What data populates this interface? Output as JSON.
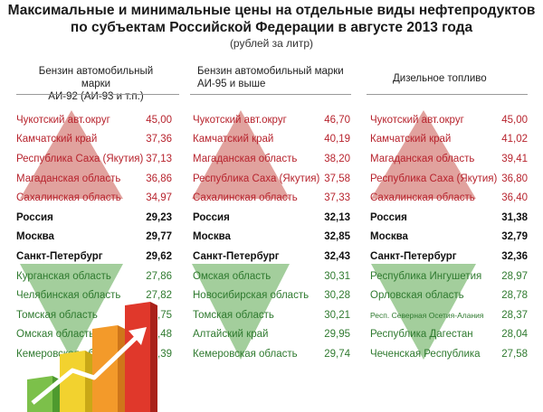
{
  "header": {
    "title_line1": "Максимальные и минимальные цены на отдельные виды нефтепродуктов",
    "title_line2": "по субъектам Российской Федерации в августе 2013 года",
    "subtitle": "(рублей за литр)"
  },
  "colors": {
    "high": "#b7232d",
    "center": "#111111",
    "low": "#2f7a2f",
    "arrow_up": "#c8564f",
    "arrow_down": "#58a64a"
  },
  "chart_data": {
    "type": "table",
    "columns": [
      {
        "header_line1": "Бензин автомобильный марки",
        "header_line2": "АИ-92 (АИ-93 и т.п.)",
        "rows": [
          {
            "region": "Чукотский авт.округ",
            "value": "45,00",
            "group": "high"
          },
          {
            "region": "Камчатский край",
            "value": "37,36",
            "group": "high"
          },
          {
            "region": "Республика Саха (Якутия)",
            "value": "37,13",
            "group": "high"
          },
          {
            "region": "Магаданская область",
            "value": "36,86",
            "group": "high"
          },
          {
            "region": "Сахалинская область",
            "value": "34,97",
            "group": "high"
          },
          {
            "region": "Россия",
            "value": "29,23",
            "group": "center"
          },
          {
            "region": "Москва",
            "value": "29,77",
            "group": "center"
          },
          {
            "region": "Санкт-Петербург",
            "value": "29,62",
            "group": "center"
          },
          {
            "region": "Курганская область",
            "value": "27,86",
            "group": "low"
          },
          {
            "region": "Челябинская область",
            "value": "27,82",
            "group": "low"
          },
          {
            "region": "Томская область",
            "value": "27,75",
            "group": "low"
          },
          {
            "region": "Омская область",
            "value": "27,48",
            "group": "low"
          },
          {
            "region": "Кемеровская область",
            "value": "27,39",
            "group": "low"
          }
        ]
      },
      {
        "header_line1": "Бензин автомобильный марки",
        "header_line2": "АИ-95 и выше",
        "rows": [
          {
            "region": "Чукотский авт.округ",
            "value": "46,70",
            "group": "high"
          },
          {
            "region": "Камчатский край",
            "value": "40,19",
            "group": "high"
          },
          {
            "region": "Магаданская область",
            "value": "38,20",
            "group": "high"
          },
          {
            "region": "Республика Саха (Якутия)",
            "value": "37,58",
            "group": "high"
          },
          {
            "region": "Сахалинская область",
            "value": "37,33",
            "group": "high"
          },
          {
            "region": "Россия",
            "value": "32,13",
            "group": "center"
          },
          {
            "region": "Москва",
            "value": "32,85",
            "group": "center"
          },
          {
            "region": "Санкт-Петербург",
            "value": "32,43",
            "group": "center"
          },
          {
            "region": "Омская область",
            "value": "30,31",
            "group": "low"
          },
          {
            "region": "Новосибирская область",
            "value": "30,28",
            "group": "low"
          },
          {
            "region": "Томская область",
            "value": "30,21",
            "group": "low"
          },
          {
            "region": "Алтайский край",
            "value": "29,95",
            "group": "low"
          },
          {
            "region": "Кемеровская область",
            "value": "29,74",
            "group": "low"
          }
        ]
      },
      {
        "header_line1": "Дизельное топливо",
        "header_line2": "",
        "rows": [
          {
            "region": "Чукотский авт.округ",
            "value": "45,00",
            "group": "high"
          },
          {
            "region": "Камчатский край",
            "value": "41,02",
            "group": "high"
          },
          {
            "region": "Магаданская область",
            "value": "39,41",
            "group": "high"
          },
          {
            "region": "Республика Саха (Якутия)",
            "value": "36,80",
            "group": "high"
          },
          {
            "region": "Сахалинская область",
            "value": "36,40",
            "group": "high"
          },
          {
            "region": "Россия",
            "value": "31,38",
            "group": "center"
          },
          {
            "region": "Москва",
            "value": "32,79",
            "group": "center"
          },
          {
            "region": "Санкт-Петербург",
            "value": "32,36",
            "group": "center"
          },
          {
            "region": "Республика Ингушетия",
            "value": "28,97",
            "group": "low"
          },
          {
            "region": "Орловская область",
            "value": "28,78",
            "group": "low"
          },
          {
            "region": "Респ. Северная Осетия-Алания",
            "value": "28,37",
            "group": "low"
          },
          {
            "region": "Республика Дагестан",
            "value": "28,04",
            "group": "low"
          },
          {
            "region": "Чеченская Республика",
            "value": "27,58",
            "group": "low"
          }
        ]
      }
    ]
  }
}
